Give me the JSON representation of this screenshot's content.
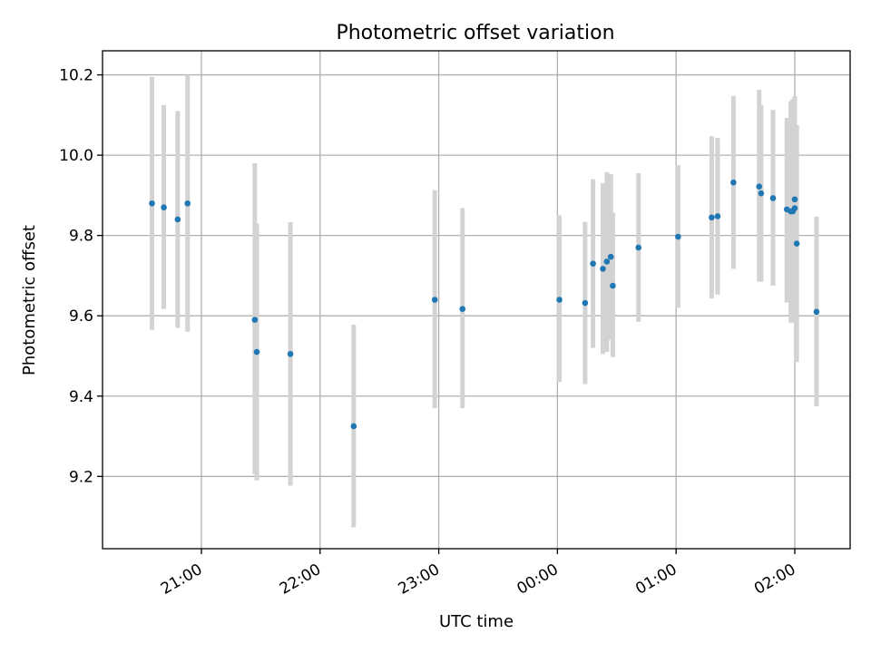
{
  "chart_data": {
    "type": "scatter",
    "title": "Photometric offset variation",
    "xlabel": "UTC time",
    "ylabel": "Photometric offset",
    "x_is_time": true,
    "xlim": [
      "20:10",
      "02:28"
    ],
    "ylim": [
      9.02,
      10.26
    ],
    "x_ticks": [
      "21:00",
      "22:00",
      "23:00",
      "00:00",
      "01:00",
      "02:00"
    ],
    "y_ticks": [
      9.2,
      9.4,
      9.6,
      9.8,
      10.0,
      10.2
    ],
    "grid": true,
    "colors": {
      "marker": "#1f77b4",
      "errorbar": "#d3d3d3"
    },
    "series": [
      {
        "points": [
          {
            "x": "20:35",
            "y": 9.88,
            "lo": 9.565,
            "hi": 10.195
          },
          {
            "x": "20:41",
            "y": 9.87,
            "lo": 9.617,
            "hi": 10.125
          },
          {
            "x": "20:48",
            "y": 9.84,
            "lo": 9.57,
            "hi": 10.11
          },
          {
            "x": "20:53",
            "y": 9.88,
            "lo": 9.56,
            "hi": 10.2
          },
          {
            "x": "21:27",
            "y": 9.59,
            "lo": 9.205,
            "hi": 9.98
          },
          {
            "x": "21:28",
            "y": 9.51,
            "lo": 9.19,
            "hi": 9.83
          },
          {
            "x": "21:45",
            "y": 9.505,
            "lo": 9.177,
            "hi": 9.833
          },
          {
            "x": "22:17",
            "y": 9.325,
            "lo": 9.073,
            "hi": 9.578
          },
          {
            "x": "22:58",
            "y": 9.64,
            "lo": 9.37,
            "hi": 9.913
          },
          {
            "x": "23:12",
            "y": 9.617,
            "lo": 9.37,
            "hi": 9.868
          },
          {
            "x": "00:01",
            "y": 9.64,
            "lo": 9.435,
            "hi": 9.85
          },
          {
            "x": "00:14",
            "y": 9.632,
            "lo": 9.43,
            "hi": 9.834
          },
          {
            "x": "00:18",
            "y": 9.73,
            "lo": 9.52,
            "hi": 9.94
          },
          {
            "x": "00:23",
            "y": 9.717,
            "lo": 9.505,
            "hi": 9.93
          },
          {
            "x": "00:25",
            "y": 9.735,
            "lo": 9.51,
            "hi": 9.958
          },
          {
            "x": "00:27",
            "y": 9.747,
            "lo": 9.54,
            "hi": 9.953
          },
          {
            "x": "00:28",
            "y": 9.675,
            "lo": 9.497,
            "hi": 9.857
          },
          {
            "x": "00:41",
            "y": 9.77,
            "lo": 9.585,
            "hi": 9.955
          },
          {
            "x": "01:01",
            "y": 9.797,
            "lo": 9.62,
            "hi": 9.975
          },
          {
            "x": "01:18",
            "y": 9.845,
            "lo": 9.643,
            "hi": 10.047
          },
          {
            "x": "01:21",
            "y": 9.848,
            "lo": 9.653,
            "hi": 10.043
          },
          {
            "x": "01:29",
            "y": 9.932,
            "lo": 9.717,
            "hi": 10.148
          },
          {
            "x": "01:42",
            "y": 9.922,
            "lo": 9.685,
            "hi": 10.163
          },
          {
            "x": "01:43",
            "y": 9.905,
            "lo": 9.685,
            "hi": 10.125
          },
          {
            "x": "01:49",
            "y": 9.893,
            "lo": 9.675,
            "hi": 10.113
          },
          {
            "x": "01:56",
            "y": 9.865,
            "lo": 9.633,
            "hi": 10.093
          },
          {
            "x": "01:58",
            "y": 9.86,
            "lo": 9.583,
            "hi": 10.135
          },
          {
            "x": "01:59",
            "y": 9.86,
            "lo": 9.583,
            "hi": 10.14
          },
          {
            "x": "02:00",
            "y": 9.89,
            "lo": 9.643,
            "hi": 10.147
          },
          {
            "x": "02:00",
            "y": 9.868,
            "lo": 9.66,
            "hi": 10.075
          },
          {
            "x": "02:01",
            "y": 9.78,
            "lo": 9.485,
            "hi": 10.075
          },
          {
            "x": "02:11",
            "y": 9.61,
            "lo": 9.375,
            "hi": 9.847
          }
        ]
      }
    ]
  }
}
